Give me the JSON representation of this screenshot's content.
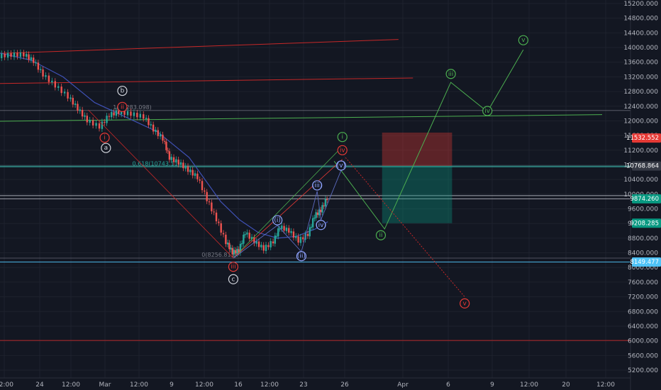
{
  "chart_data": {
    "type": "candlestick",
    "instrument": "BTC",
    "y_ticks": [
      5200,
      5600,
      6000,
      6400,
      6800,
      7200,
      7600,
      8000,
      8400,
      8800,
      9200,
      9600,
      10000,
      10400,
      10800,
      11200,
      11600,
      12000,
      12400,
      12800,
      13200,
      13600,
      14000,
      14400,
      14800,
      15200
    ],
    "y_tick_labels": [
      "5200.000",
      "5600.000",
      "6000.000",
      "6400.000",
      "6800.000",
      "7200.000",
      "7600.000",
      "8000.000",
      "8400.000",
      "8800.000",
      "9200.000",
      "9600.000",
      "10000.000",
      "10400.000",
      "10800.000",
      "11200.000",
      "11600.000",
      "12000.000",
      "12400.000",
      "12800.000",
      "13200.000",
      "13600.000",
      "14000.000",
      "14400.000",
      "14800.000",
      "15200.000"
    ],
    "ylim": [
      5000,
      15400
    ],
    "x_tick_labels": [
      "12:00",
      "24",
      "12:00",
      "Mar",
      "12:00",
      "9",
      "12:00",
      "16",
      "12:00",
      "23",
      "26",
      "Apr",
      "6",
      "9",
      "12:00",
      "20",
      "12:00"
    ],
    "price_badges": [
      {
        "label": "11532.552",
        "value": 11532.552,
        "color": "#e53935"
      },
      {
        "label": "10768.864",
        "value": 10768.864,
        "color": "#363a45"
      },
      {
        "label": "9874.260",
        "value": 9874.26,
        "color": "#089981"
      },
      {
        "label": "9208.285",
        "value": 9208.285,
        "color": "#089981"
      },
      {
        "label": "8149.477",
        "value": 8149.477,
        "color": "#4fc3f7"
      }
    ],
    "fib_levels": [
      {
        "label": "1(12283.098)",
        "value": 12283.098
      },
      {
        "label": "0.618(10743.11)",
        "value": 10743.11
      },
      {
        "label": "0(8256.815)",
        "value": 8256.815
      }
    ],
    "horizontal_lines": [
      {
        "value": 10768.864,
        "color": "#4db6ac"
      },
      {
        "value": 9960,
        "color": "#b2b5be"
      },
      {
        "value": 9874.26,
        "color": "#b2b5be"
      },
      {
        "value": 8149.477,
        "color": "#4fc3f7"
      },
      {
        "value": 6010,
        "color": "#c62828"
      }
    ],
    "trend_lines": [
      {
        "x1": 0.0,
        "y1": 13840,
        "x2": 0.632,
        "y2": 14220,
        "color": "#c62828"
      },
      {
        "x1": 0.0,
        "y1": 13020,
        "x2": 0.655,
        "y2": 13170,
        "color": "#c62828"
      },
      {
        "x1": 0.0,
        "y1": 11990,
        "x2": 0.955,
        "y2": 12170,
        "color": "#4caf50"
      }
    ],
    "price_path": [
      [
        0.0,
        13760
      ],
      [
        0.02,
        13790
      ],
      [
        0.04,
        13800
      ],
      [
        0.055,
        13620
      ],
      [
        0.07,
        13250
      ],
      [
        0.09,
        12950
      ],
      [
        0.11,
        12650
      ],
      [
        0.125,
        12320
      ],
      [
        0.14,
        12000
      ],
      [
        0.16,
        11830
      ],
      [
        0.175,
        12150
      ],
      [
        0.19,
        12230
      ],
      [
        0.21,
        12180
      ],
      [
        0.23,
        12100
      ],
      [
        0.245,
        11750
      ],
      [
        0.26,
        11500
      ],
      [
        0.27,
        10980
      ],
      [
        0.285,
        10850
      ],
      [
        0.3,
        10650
      ],
      [
        0.315,
        10450
      ],
      [
        0.33,
        9850
      ],
      [
        0.345,
        9300
      ],
      [
        0.36,
        8680
      ],
      [
        0.37,
        8400
      ],
      [
        0.38,
        8450
      ],
      [
        0.39,
        8950
      ],
      [
        0.405,
        8700
      ],
      [
        0.42,
        8500
      ],
      [
        0.435,
        8700
      ],
      [
        0.445,
        9100
      ],
      [
        0.46,
        8990
      ],
      [
        0.475,
        8720
      ],
      [
        0.49,
        8900
      ],
      [
        0.5,
        9400
      ],
      [
        0.51,
        9550
      ],
      [
        0.52,
        9880
      ]
    ],
    "moving_average": [
      [
        0.0,
        13850
      ],
      [
        0.05,
        13650
      ],
      [
        0.1,
        13200
      ],
      [
        0.15,
        12500
      ],
      [
        0.2,
        12100
      ],
      [
        0.25,
        11700
      ],
      [
        0.3,
        11000
      ],
      [
        0.35,
        9800
      ],
      [
        0.38,
        9300
      ],
      [
        0.41,
        8950
      ],
      [
        0.44,
        8800
      ],
      [
        0.47,
        8850
      ],
      [
        0.5,
        9050
      ],
      [
        0.52,
        9250
      ]
    ],
    "projection_primary": [
      [
        0.53,
        10900
      ],
      [
        0.61,
        9050
      ],
      [
        0.715,
        13050
      ],
      [
        0.773,
        12250
      ],
      [
        0.83,
        13940
      ]
    ],
    "projection_alt": [
      [
        0.548,
        11000
      ],
      [
        0.737,
        7200
      ]
    ],
    "position_box": {
      "x1": 0.606,
      "x2": 0.717,
      "stop_top": 11680,
      "entry": 10768.864,
      "target": 9208.285
    },
    "wave_labels": [
      {
        "text": "b",
        "x": 0.194,
        "value": 12820,
        "color": "#d1d4dc"
      },
      {
        "text": "ii",
        "x": 0.194,
        "value": 12380,
        "color": "#e53935"
      },
      {
        "text": "i",
        "x": 0.166,
        "value": 11540,
        "color": "#e53935"
      },
      {
        "text": "a",
        "x": 0.168,
        "value": 11260,
        "color": "#d1d4dc"
      },
      {
        "text": "i",
        "x": 0.543,
        "value": 11560,
        "color": "#4caf50"
      },
      {
        "text": "iv",
        "x": 0.543,
        "value": 11200,
        "color": "#e53935"
      },
      {
        "text": "(v)",
        "x": 0.541,
        "value": 10780,
        "color": "#90a4ff"
      },
      {
        "text": "(iii)",
        "x": 0.503,
        "value": 10240,
        "color": "#90a4ff"
      },
      {
        "text": "(i)",
        "x": 0.44,
        "value": 9290,
        "color": "#90a4ff"
      },
      {
        "text": "(iv)",
        "x": 0.509,
        "value": 9160,
        "color": "#90a4ff"
      },
      {
        "text": "(ii)",
        "x": 0.478,
        "value": 8310,
        "color": "#90a4ff"
      },
      {
        "text": "iii",
        "x": 0.37,
        "value": 8020,
        "color": "#e53935"
      },
      {
        "text": "c",
        "x": 0.37,
        "value": 7680,
        "color": "#d1d4dc"
      },
      {
        "text": "ii",
        "x": 0.604,
        "value": 8880,
        "color": "#4caf50"
      },
      {
        "text": "iii",
        "x": 0.715,
        "value": 13280,
        "color": "#4caf50"
      },
      {
        "text": "iv",
        "x": 0.773,
        "value": 12270,
        "color": "#4caf50"
      },
      {
        "text": "v",
        "x": 0.83,
        "value": 14200,
        "color": "#4caf50"
      },
      {
        "text": "v",
        "x": 0.737,
        "value": 7020,
        "color": "#e53935"
      }
    ]
  }
}
